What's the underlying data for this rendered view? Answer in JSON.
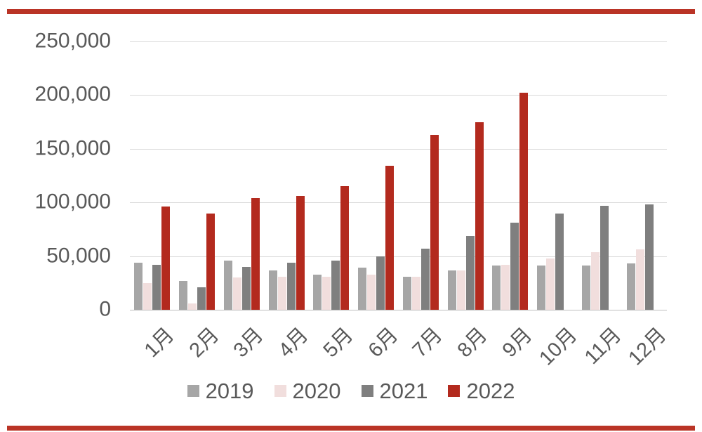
{
  "page": {
    "background": "#ffffff",
    "accent_rule_color": "#ba3426",
    "text_color": "#595959",
    "gridline_color": "#d9d9d9",
    "axis_line_color": "#bfbfbf"
  },
  "chart_data": {
    "type": "bar",
    "title": "",
    "xlabel": "",
    "ylabel": "",
    "grid": true,
    "legend_position": "bottom",
    "ylim": [
      0,
      250000
    ],
    "yticks": [
      {
        "value": 250000,
        "label": "250,000"
      },
      {
        "value": 200000,
        "label": "200,000"
      },
      {
        "value": 150000,
        "label": "150,000"
      },
      {
        "value": 100000,
        "label": "100,000"
      },
      {
        "value": 50000,
        "label": "50,000"
      },
      {
        "value": 0,
        "label": "0"
      }
    ],
    "categories": [
      "1月",
      "2月",
      "3月",
      "4月",
      "5月",
      "6月",
      "7月",
      "8月",
      "9月",
      "10月",
      "11月",
      "12月"
    ],
    "series": [
      {
        "name": "2019",
        "color": "#a6a6a6",
        "values": [
          44000,
          27000,
          46000,
          37000,
          33000,
          39000,
          31000,
          37000,
          41000,
          41000,
          41000,
          43000
        ]
      },
      {
        "name": "2020",
        "color": "#f1dedd",
        "values": [
          25000,
          6000,
          30000,
          31000,
          31000,
          33000,
          31000,
          37000,
          42000,
          48000,
          54000,
          56000
        ]
      },
      {
        "name": "2021",
        "color": "#7f7f7f",
        "values": [
          42000,
          21000,
          40000,
          44000,
          46000,
          50000,
          57000,
          69000,
          81000,
          90000,
          97000,
          98000
        ]
      },
      {
        "name": "2022",
        "color": "#b32a1e",
        "values": [
          96000,
          90000,
          104000,
          106000,
          115000,
          134000,
          163000,
          175000,
          202000,
          null,
          null,
          null
        ]
      }
    ]
  }
}
